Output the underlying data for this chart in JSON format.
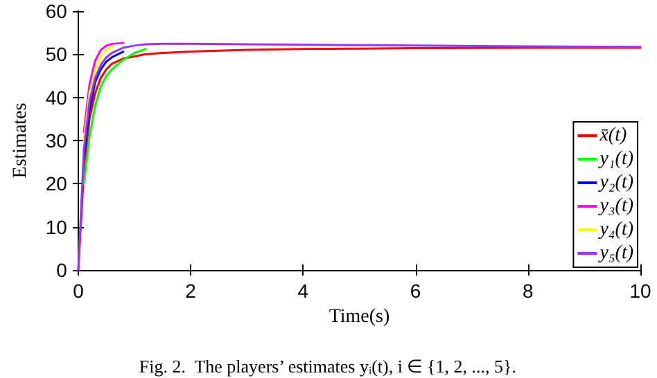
{
  "chart_data": {
    "type": "line",
    "xlabel": "Time(s)",
    "ylabel": "Estimates",
    "annotations": [
      "Fig. 2.  The players’ estimates yᵢ(t), i ∈ {1, 2, ..., 5}."
    ],
    "x": [
      0,
      0.1,
      0.2,
      0.3,
      0.4,
      0.5,
      0.6,
      0.8,
      1,
      1.2,
      1.5,
      2,
      3,
      4,
      5,
      6,
      8,
      10
    ],
    "series": [
      {
        "name": "x̄(t)",
        "color": "#ff0000",
        "values": [
          0,
          23,
          35,
          41,
          44.5,
          46.5,
          47.8,
          49,
          49.5,
          50,
          50.3,
          50.6,
          51,
          51.2,
          51.3,
          51.4,
          51.5,
          51.5
        ]
      },
      {
        "name": "y₁(t)",
        "color": "#00ff00",
        "values": [
          null,
          20,
          31,
          38,
          42.5,
          45,
          46.5,
          48.7,
          50.3,
          51.2,
          null,
          null,
          null,
          null,
          null,
          null,
          null,
          null
        ]
      },
      {
        "name": "y₂(t)",
        "color": "#0000ff",
        "values": [
          null,
          26,
          37,
          43.5,
          46.5,
          48.3,
          49.3,
          50.6,
          null,
          null,
          null,
          null,
          null,
          null,
          null,
          null,
          null,
          null
        ]
      },
      {
        "name": "y₃(t)",
        "color": "#ff00ff",
        "values": [
          null,
          32,
          43,
          48.5,
          51,
          52,
          52.4,
          52.6,
          null,
          null,
          null,
          null,
          null,
          null,
          null,
          null,
          null,
          null
        ]
      },
      {
        "name": "y₄(t)",
        "color": "#ffff00",
        "values": [
          null,
          30,
          41,
          46.5,
          49.5,
          51,
          51.8,
          null,
          null,
          null,
          null,
          null,
          null,
          null,
          null,
          null,
          null,
          null
        ]
      },
      {
        "name": "y₅(t)",
        "color": "#9933ff",
        "values": [
          0,
          28,
          39,
          44.5,
          47.5,
          49.3,
          50.3,
          51.5,
          52,
          52.3,
          52.4,
          52.4,
          52.3,
          52.2,
          52.1,
          52,
          51.8,
          51.7
        ]
      }
    ],
    "xlim": [
      0,
      10
    ],
    "xticks": [
      0,
      2,
      4,
      6,
      8,
      10
    ],
    "ylim": [
      0,
      60
    ],
    "yticks": [
      0,
      10,
      20,
      30,
      40,
      50,
      60
    ],
    "grid": false,
    "legend": "bottom right",
    "marker": "none",
    "line_style": "solid"
  }
}
